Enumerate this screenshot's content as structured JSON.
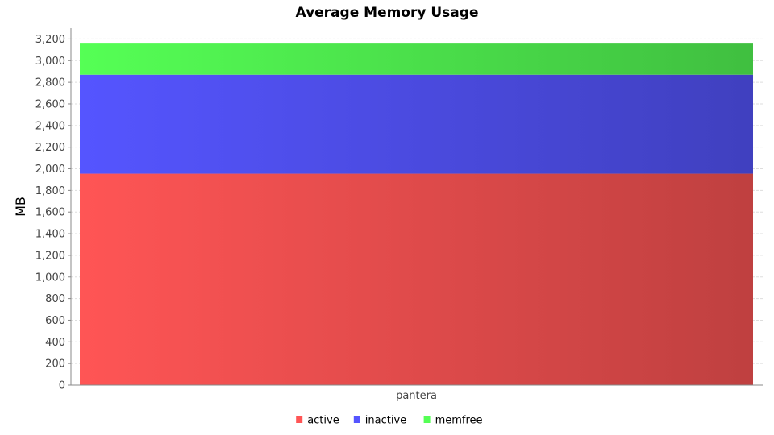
{
  "chart_data": {
    "type": "bar",
    "stacked": true,
    "title": "Average Memory Usage",
    "xlabel": "",
    "ylabel": "MB",
    "categories": [
      "pantera"
    ],
    "series": [
      {
        "name": "active",
        "values": [
          1955
        ],
        "color": "#ff5555"
      },
      {
        "name": "inactive",
        "values": [
          915
        ],
        "color": "#5555ff"
      },
      {
        "name": "memfree",
        "values": [
          295
        ],
        "color": "#55ff55"
      }
    ],
    "ylim": [
      0,
      3300
    ],
    "yticks": [
      0,
      200,
      400,
      600,
      800,
      1000,
      1200,
      1400,
      1600,
      1800,
      2000,
      2200,
      2400,
      2600,
      2800,
      3000,
      3200
    ],
    "ytick_labels": [
      "0",
      "200",
      "400",
      "600",
      "800",
      "1,000",
      "1,200",
      "1,400",
      "1,600",
      "1,800",
      "2,000",
      "2,200",
      "2,400",
      "2,600",
      "2,800",
      "3,000",
      "3,200"
    ],
    "grid": true,
    "legend_position": "bottom"
  }
}
